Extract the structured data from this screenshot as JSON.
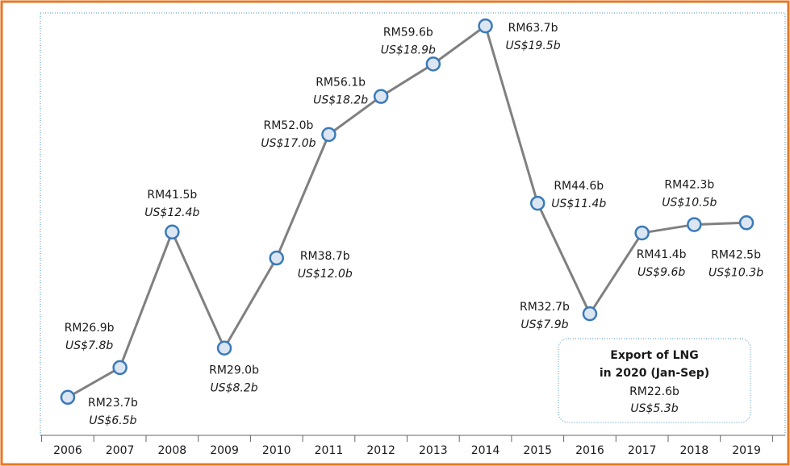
{
  "chart_data": {
    "type": "line",
    "categories": [
      "2006",
      "2007",
      "2008",
      "2009",
      "2010",
      "2011",
      "2012",
      "2013",
      "2014",
      "2015",
      "2016",
      "2017",
      "2018",
      "2019"
    ],
    "values": [
      23.7,
      26.9,
      41.5,
      29.0,
      38.7,
      52.0,
      56.1,
      59.6,
      63.7,
      44.6,
      32.7,
      41.4,
      42.3,
      42.5
    ],
    "value_labels": [
      "RM23.7b",
      "RM26.9b",
      "RM41.5b",
      "RM29.0b",
      "RM38.7b",
      "RM52.0b",
      "RM56.1b",
      "RM59.6b",
      "RM63.7b",
      "RM44.6b",
      "RM32.7b",
      "RM41.4b",
      "RM42.3b",
      "RM42.5b"
    ],
    "secondary_labels": [
      "US$6.5b",
      "US$7.8b",
      "US$12.4b",
      "US$8.2b",
      "US$12.0b",
      "US$17.0b",
      "US$18.2b",
      "US$18.9b",
      "US$19.5b",
      "US$11.4b",
      "US$7.9b",
      "US$9.6b",
      "US$10.5b",
      "US$10.3b"
    ],
    "color": "#808080",
    "marker_fill": "#dce6f2",
    "marker_stroke": "#3a7ab8",
    "ylim": [
      19.6,
      65.1
    ],
    "annotation": {
      "title": [
        "Export of LNG",
        "in 2020 (Jan-Sep)"
      ],
      "value_label": "RM22.6b",
      "secondary_label": "US$5.3b"
    }
  }
}
